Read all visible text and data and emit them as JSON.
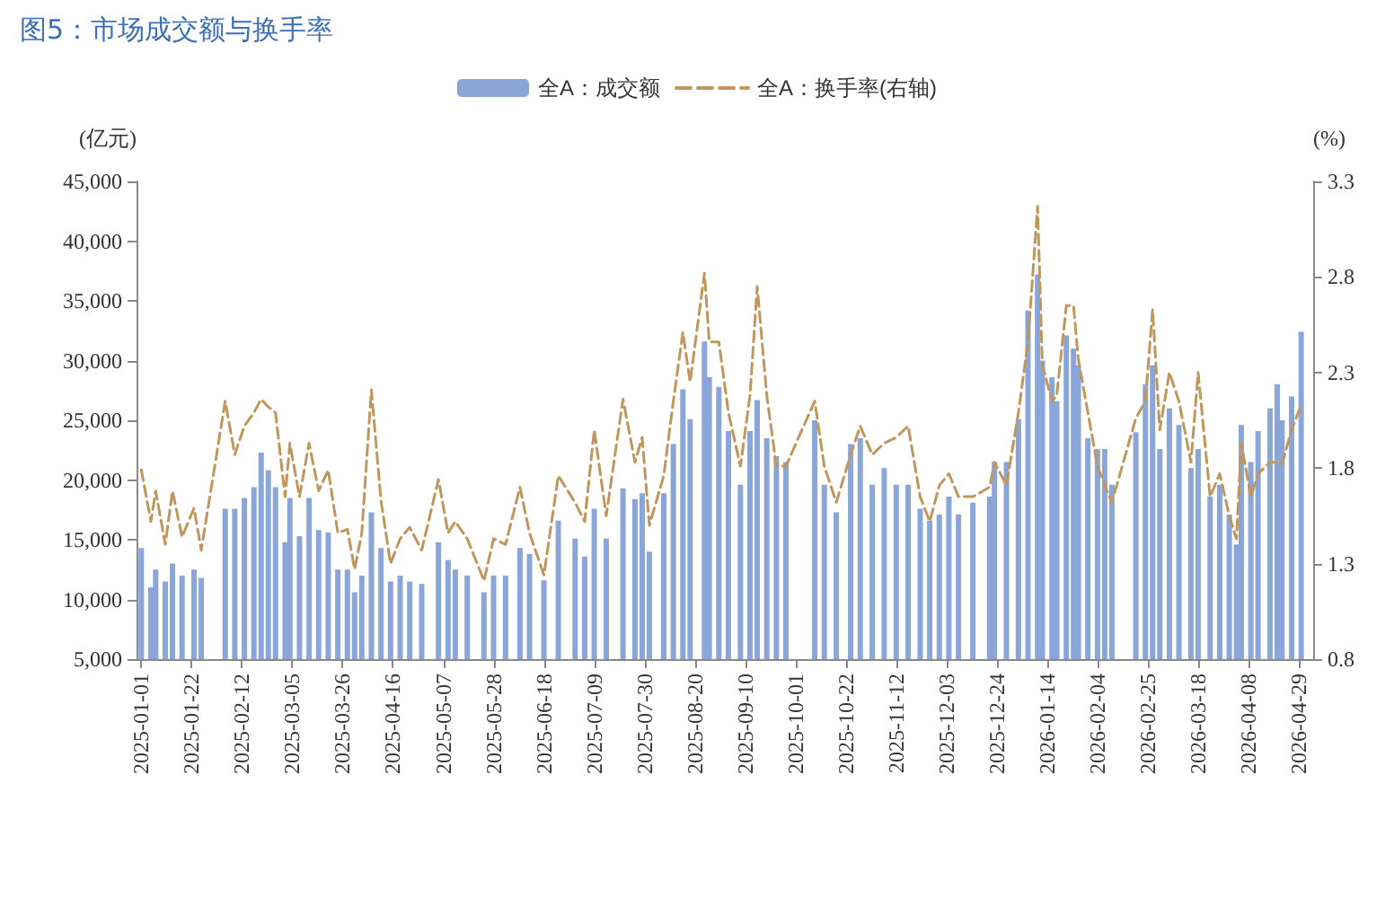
{
  "chart_data": {
    "type": "bar",
    "title": "图5：市场成交额与换手率",
    "ylabel": "(亿元)",
    "y2label": "(%)",
    "x": [
      "2025-01-01",
      "2025-01-05",
      "2025-01-07",
      "2025-01-11",
      "2025-01-14",
      "2025-01-18",
      "2025-01-23",
      "2025-01-26",
      "2025-02-05",
      "2025-02-09",
      "2025-02-13",
      "2025-02-17",
      "2025-02-20",
      "2025-02-23",
      "2025-02-26",
      "2025-03-02",
      "2025-03-04",
      "2025-03-08",
      "2025-03-12",
      "2025-03-16",
      "2025-03-20",
      "2025-03-24",
      "2025-03-28",
      "2025-03-31",
      "2025-04-03",
      "2025-04-07",
      "2025-04-11",
      "2025-04-15",
      "2025-04-19",
      "2025-04-23",
      "2025-04-28",
      "2025-05-05",
      "2025-05-09",
      "2025-05-12",
      "2025-05-17",
      "2025-05-24",
      "2025-05-28",
      "2025-06-02",
      "2025-06-08",
      "2025-06-12",
      "2025-06-18",
      "2025-06-24",
      "2025-07-01",
      "2025-07-05",
      "2025-07-09",
      "2025-07-14",
      "2025-07-21",
      "2025-07-26",
      "2025-07-29",
      "2025-08-01",
      "2025-08-07",
      "2025-08-11",
      "2025-08-15",
      "2025-08-18",
      "2025-08-24",
      "2025-08-26",
      "2025-08-30",
      "2025-09-03",
      "2025-09-08",
      "2025-09-12",
      "2025-09-15",
      "2025-09-19",
      "2025-09-23",
      "2025-09-27",
      "2025-10-09",
      "2025-10-13",
      "2025-10-18",
      "2025-10-24",
      "2025-10-28",
      "2025-11-02",
      "2025-11-07",
      "2025-11-12",
      "2025-11-17",
      "2025-11-22",
      "2025-11-26",
      "2025-11-30",
      "2025-12-04",
      "2025-12-08",
      "2025-12-14",
      "2025-12-21",
      "2025-12-23",
      "2025-12-28",
      "2026-01-02",
      "2026-01-06",
      "2026-01-10",
      "2026-01-12",
      "2026-01-16",
      "2026-01-18",
      "2026-01-22",
      "2026-01-25",
      "2026-01-27",
      "2026-01-31",
      "2026-02-04",
      "2026-02-07",
      "2026-02-10",
      "2026-02-20",
      "2026-02-24",
      "2026-02-27",
      "2026-03-02",
      "2026-03-06",
      "2026-03-10",
      "2026-03-15",
      "2026-03-18",
      "2026-03-23",
      "2026-03-27",
      "2026-03-31",
      "2026-04-03",
      "2026-04-05",
      "2026-04-09",
      "2026-04-12",
      "2026-04-17",
      "2026-04-20",
      "2026-04-22",
      "2026-04-26",
      "2026-04-30"
    ],
    "series": [
      {
        "name": "全A：成交额",
        "color": "#8aa6d8",
        "values": [
          14300,
          11000,
          12500,
          11500,
          13000,
          12000,
          12500,
          11800,
          17600,
          17600,
          18500,
          19400,
          22300,
          20800,
          19400,
          14800,
          18500,
          15300,
          18500,
          15800,
          15600,
          12500,
          12500,
          10600,
          12000,
          17300,
          14300,
          11500,
          12000,
          11500,
          11300,
          14800,
          13300,
          12500,
          12000,
          10600,
          12000,
          12000,
          14300,
          13800,
          11600,
          16600,
          15100,
          13600,
          17600,
          15100,
          19300,
          18400,
          18900,
          14000,
          18900,
          23000,
          27600,
          25100,
          31600,
          28600,
          27800,
          24100,
          19600,
          24100,
          26700,
          23500,
          22000,
          21500,
          25000,
          19600,
          17300,
          23000,
          23500,
          19600,
          21000,
          19600,
          19600,
          17600,
          16600,
          17100,
          18600,
          17100,
          18100,
          18600,
          21500,
          21500,
          25100,
          34200,
          37200,
          30000,
          28600,
          26600,
          32100,
          31000,
          29600,
          23500,
          22600,
          22600,
          19600,
          24000,
          28000,
          29600,
          22600,
          26000,
          24600,
          21000,
          22600,
          18600,
          19600,
          17100,
          14600,
          24600,
          21500,
          24100,
          26000,
          28000,
          25000,
          27000,
          32400
        ]
      },
      {
        "name": "全A：换手率(右轴)",
        "type": "line",
        "axis": "y2",
        "color": "#c0965a",
        "line_style": "dashed",
        "values": [
          1.79,
          1.52,
          1.68,
          1.4,
          1.68,
          1.44,
          1.59,
          1.37,
          2.15,
          1.87,
          2.02,
          2.09,
          2.16,
          2.12,
          2.09,
          1.65,
          1.93,
          1.65,
          1.93,
          1.68,
          1.79,
          1.46,
          1.48,
          1.27,
          1.46,
          2.21,
          1.63,
          1.3,
          1.43,
          1.49,
          1.37,
          1.74,
          1.46,
          1.52,
          1.43,
          1.21,
          1.43,
          1.4,
          1.7,
          1.46,
          1.24,
          1.76,
          1.62,
          1.52,
          2.0,
          1.55,
          2.16,
          1.83,
          1.96,
          1.5,
          1.76,
          2.15,
          2.51,
          2.25,
          2.82,
          2.46,
          2.46,
          2.09,
          1.81,
          2.18,
          2.75,
          2.18,
          1.81,
          1.81,
          2.15,
          1.81,
          1.62,
          1.87,
          2.02,
          1.87,
          1.93,
          1.96,
          2.02,
          1.65,
          1.52,
          1.71,
          1.77,
          1.65,
          1.65,
          1.7,
          1.83,
          1.71,
          2.09,
          2.46,
          3.17,
          2.34,
          2.15,
          2.18,
          2.65,
          2.65,
          2.37,
          2.09,
          1.81,
          1.71,
          1.62,
          2.06,
          2.15,
          2.63,
          2.0,
          2.3,
          2.15,
          1.83,
          2.3,
          1.65,
          1.77,
          1.55,
          1.43,
          1.93,
          1.65,
          1.77,
          1.83,
          1.83,
          1.82,
          2.0,
          2.13
        ]
      }
    ],
    "xlim": [
      "2024-12-30",
      "2026-05-05"
    ],
    "xticks": [
      "2025-01-01",
      "2025-01-22",
      "2025-02-12",
      "2025-03-05",
      "2025-03-26",
      "2025-04-16",
      "2025-05-07",
      "2025-05-28",
      "2025-06-18",
      "2025-07-09",
      "2025-07-30",
      "2025-08-20",
      "2025-09-10",
      "2025-10-01",
      "2025-10-22",
      "2025-11-12",
      "2025-12-03",
      "2025-12-24",
      "2026-01-14",
      "2026-02-04",
      "2026-02-25",
      "2026-03-18",
      "2026-04-08",
      "2026-04-29"
    ],
    "ylim": [
      5000,
      45000
    ],
    "yticks": [
      {
        "value": 5000,
        "label": "5,000"
      },
      {
        "value": 10000,
        "label": "10,000"
      },
      {
        "value": 15000,
        "label": "15,000"
      },
      {
        "value": 20000,
        "label": "20,000"
      },
      {
        "value": 25000,
        "label": "25,000"
      },
      {
        "value": 30000,
        "label": "30,000"
      },
      {
        "value": 35000,
        "label": "35,000"
      },
      {
        "value": 40000,
        "label": "40,000"
      },
      {
        "value": 45000,
        "label": "45,000"
      }
    ],
    "y2lim": [
      0.8,
      3.3
    ],
    "y2ticks": [
      0.8,
      1.3,
      1.8,
      2.3,
      2.8,
      3.3
    ],
    "legend": "top",
    "grid": false,
    "marker": "none"
  }
}
